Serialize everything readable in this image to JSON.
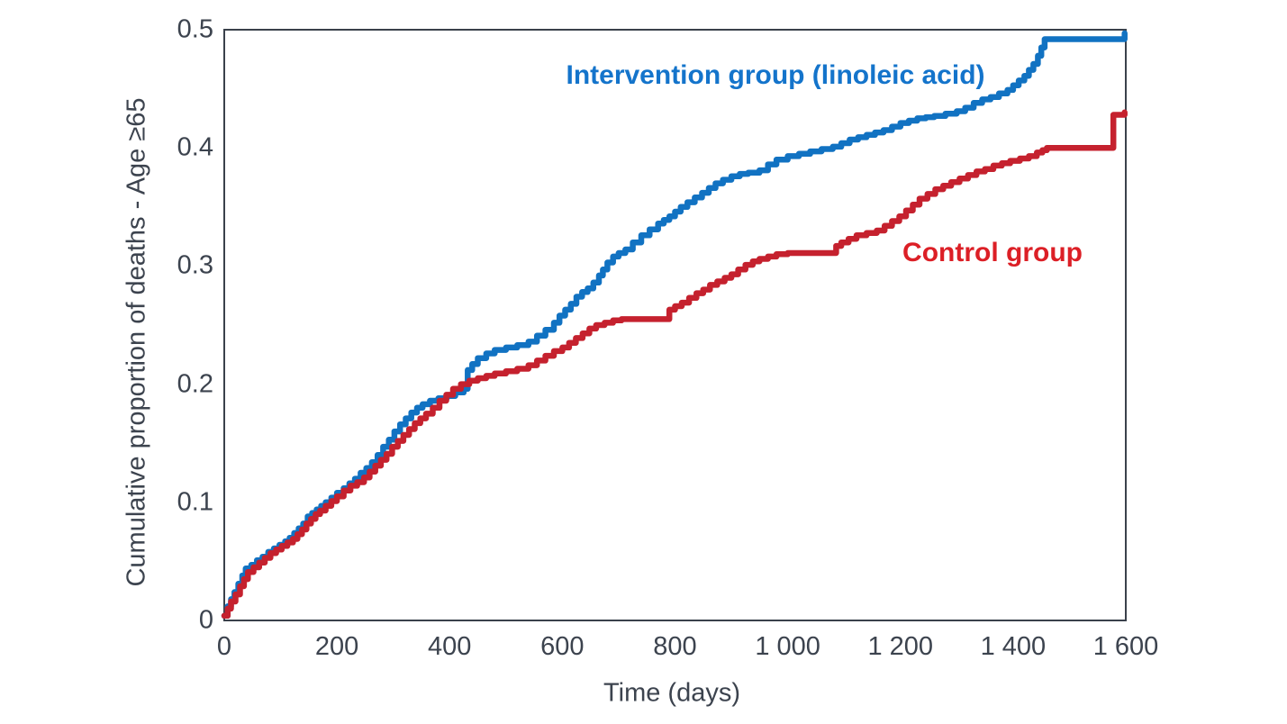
{
  "figure": {
    "background": "#ffffff",
    "frame_color": "#3a414b",
    "text_color": "#3c434e"
  },
  "chart_data": {
    "type": "line",
    "subtype": "step-after",
    "title": "",
    "xlabel": "Time (days)",
    "ylabel": "Cumulative proportion of deaths - Age ≥65",
    "xlim": [
      0,
      1600
    ],
    "ylim": [
      0,
      0.5
    ],
    "grid": false,
    "legend_position": "inline-annotations",
    "x_ticks": [
      {
        "value": 0,
        "label": "0"
      },
      {
        "value": 200,
        "label": "200"
      },
      {
        "value": 400,
        "label": "400"
      },
      {
        "value": 600,
        "label": "600"
      },
      {
        "value": 800,
        "label": "800"
      },
      {
        "value": 1000,
        "label": "1 000"
      },
      {
        "value": 1200,
        "label": "1 200"
      },
      {
        "value": 1400,
        "label": "1 400"
      },
      {
        "value": 1600,
        "label": "1 600"
      }
    ],
    "y_ticks": [
      {
        "value": 0,
        "label": "0"
      },
      {
        "value": 0.1,
        "label": "0.1"
      },
      {
        "value": 0.2,
        "label": "0.2"
      },
      {
        "value": 0.3,
        "label": "0.3"
      },
      {
        "value": 0.4,
        "label": "0.4"
      },
      {
        "value": 0.5,
        "label": "0.5"
      }
    ],
    "series": [
      {
        "name": "Intervention group (linoleic acid)",
        "line_color": "#1172c2",
        "label_color": "#1474cb",
        "label_anchor_days": 980,
        "label_anchor_prop": 0.462,
        "points": [
          [
            0,
            0.004
          ],
          [
            6,
            0.012
          ],
          [
            12,
            0.018
          ],
          [
            18,
            0.024
          ],
          [
            25,
            0.031
          ],
          [
            32,
            0.038
          ],
          [
            38,
            0.044
          ],
          [
            48,
            0.047
          ],
          [
            58,
            0.051
          ],
          [
            68,
            0.054
          ],
          [
            78,
            0.058
          ],
          [
            88,
            0.061
          ],
          [
            98,
            0.064
          ],
          [
            108,
            0.067
          ],
          [
            116,
            0.07
          ],
          [
            124,
            0.074
          ],
          [
            132,
            0.078
          ],
          [
            140,
            0.082
          ],
          [
            148,
            0.088
          ],
          [
            156,
            0.091
          ],
          [
            164,
            0.094
          ],
          [
            172,
            0.097
          ],
          [
            180,
            0.1
          ],
          [
            190,
            0.104
          ],
          [
            200,
            0.108
          ],
          [
            212,
            0.112
          ],
          [
            222,
            0.116
          ],
          [
            232,
            0.12
          ],
          [
            242,
            0.125
          ],
          [
            252,
            0.129
          ],
          [
            262,
            0.134
          ],
          [
            272,
            0.14
          ],
          [
            282,
            0.147
          ],
          [
            292,
            0.153
          ],
          [
            302,
            0.16
          ],
          [
            312,
            0.166
          ],
          [
            322,
            0.171
          ],
          [
            332,
            0.176
          ],
          [
            342,
            0.18
          ],
          [
            352,
            0.183
          ],
          [
            365,
            0.186
          ],
          [
            380,
            0.188
          ],
          [
            395,
            0.19
          ],
          [
            410,
            0.193
          ],
          [
            425,
            0.196
          ],
          [
            432,
            0.212
          ],
          [
            440,
            0.217
          ],
          [
            450,
            0.222
          ],
          [
            465,
            0.226
          ],
          [
            480,
            0.229
          ],
          [
            500,
            0.231
          ],
          [
            520,
            0.233
          ],
          [
            540,
            0.236
          ],
          [
            555,
            0.241
          ],
          [
            570,
            0.246
          ],
          [
            585,
            0.252
          ],
          [
            595,
            0.258
          ],
          [
            605,
            0.263
          ],
          [
            615,
            0.268
          ],
          [
            625,
            0.274
          ],
          [
            635,
            0.278
          ],
          [
            645,
            0.281
          ],
          [
            655,
            0.286
          ],
          [
            665,
            0.292
          ],
          [
            672,
            0.297
          ],
          [
            680,
            0.303
          ],
          [
            690,
            0.308
          ],
          [
            700,
            0.311
          ],
          [
            712,
            0.314
          ],
          [
            725,
            0.32
          ],
          [
            740,
            0.326
          ],
          [
            755,
            0.331
          ],
          [
            770,
            0.336
          ],
          [
            780,
            0.339
          ],
          [
            790,
            0.342
          ],
          [
            800,
            0.346
          ],
          [
            810,
            0.35
          ],
          [
            822,
            0.354
          ],
          [
            835,
            0.358
          ],
          [
            848,
            0.362
          ],
          [
            860,
            0.366
          ],
          [
            872,
            0.37
          ],
          [
            885,
            0.373
          ],
          [
            900,
            0.376
          ],
          [
            915,
            0.378
          ],
          [
            930,
            0.379
          ],
          [
            950,
            0.381
          ],
          [
            965,
            0.386
          ],
          [
            980,
            0.39
          ],
          [
            1000,
            0.393
          ],
          [
            1020,
            0.395
          ],
          [
            1040,
            0.397
          ],
          [
            1060,
            0.399
          ],
          [
            1080,
            0.401
          ],
          [
            1095,
            0.404
          ],
          [
            1110,
            0.407
          ],
          [
            1125,
            0.409
          ],
          [
            1140,
            0.411
          ],
          [
            1155,
            0.413
          ],
          [
            1170,
            0.415
          ],
          [
            1185,
            0.418
          ],
          [
            1200,
            0.421
          ],
          [
            1215,
            0.423
          ],
          [
            1230,
            0.425
          ],
          [
            1245,
            0.426
          ],
          [
            1260,
            0.427
          ],
          [
            1280,
            0.429
          ],
          [
            1300,
            0.431
          ],
          [
            1315,
            0.434
          ],
          [
            1330,
            0.438
          ],
          [
            1345,
            0.441
          ],
          [
            1360,
            0.443
          ],
          [
            1375,
            0.446
          ],
          [
            1390,
            0.449
          ],
          [
            1400,
            0.453
          ],
          [
            1410,
            0.457
          ],
          [
            1420,
            0.461
          ],
          [
            1428,
            0.466
          ],
          [
            1436,
            0.471
          ],
          [
            1444,
            0.478
          ],
          [
            1450,
            0.485
          ],
          [
            1456,
            0.492
          ],
          [
            1590,
            0.492
          ],
          [
            1598,
            0.497
          ]
        ]
      },
      {
        "name": "Control group",
        "line_color": "#c5212e",
        "label_color": "#dc1f26",
        "label_anchor_days": 1365,
        "label_anchor_prop": 0.312,
        "points": [
          [
            0,
            0.004
          ],
          [
            6,
            0.01
          ],
          [
            12,
            0.016
          ],
          [
            20,
            0.022
          ],
          [
            28,
            0.029
          ],
          [
            35,
            0.035
          ],
          [
            42,
            0.041
          ],
          [
            52,
            0.045
          ],
          [
            62,
            0.049
          ],
          [
            72,
            0.053
          ],
          [
            82,
            0.057
          ],
          [
            92,
            0.06
          ],
          [
            102,
            0.063
          ],
          [
            112,
            0.066
          ],
          [
            122,
            0.069
          ],
          [
            130,
            0.073
          ],
          [
            138,
            0.077
          ],
          [
            146,
            0.082
          ],
          [
            154,
            0.086
          ],
          [
            162,
            0.09
          ],
          [
            170,
            0.093
          ],
          [
            180,
            0.097
          ],
          [
            190,
            0.101
          ],
          [
            200,
            0.105
          ],
          [
            212,
            0.11
          ],
          [
            224,
            0.114
          ],
          [
            236,
            0.117
          ],
          [
            248,
            0.121
          ],
          [
            258,
            0.126
          ],
          [
            268,
            0.131
          ],
          [
            278,
            0.136
          ],
          [
            288,
            0.141
          ],
          [
            298,
            0.147
          ],
          [
            308,
            0.152
          ],
          [
            318,
            0.157
          ],
          [
            328,
            0.162
          ],
          [
            338,
            0.167
          ],
          [
            348,
            0.171
          ],
          [
            358,
            0.175
          ],
          [
            370,
            0.18
          ],
          [
            382,
            0.186
          ],
          [
            394,
            0.191
          ],
          [
            406,
            0.196
          ],
          [
            420,
            0.2
          ],
          [
            435,
            0.203
          ],
          [
            450,
            0.205
          ],
          [
            465,
            0.207
          ],
          [
            480,
            0.209
          ],
          [
            500,
            0.211
          ],
          [
            520,
            0.213
          ],
          [
            540,
            0.216
          ],
          [
            555,
            0.22
          ],
          [
            570,
            0.224
          ],
          [
            585,
            0.228
          ],
          [
            600,
            0.231
          ],
          [
            612,
            0.235
          ],
          [
            624,
            0.239
          ],
          [
            636,
            0.243
          ],
          [
            648,
            0.247
          ],
          [
            660,
            0.25
          ],
          [
            675,
            0.252
          ],
          [
            690,
            0.254
          ],
          [
            705,
            0.255
          ],
          [
            782,
            0.255
          ],
          [
            790,
            0.263
          ],
          [
            800,
            0.266
          ],
          [
            812,
            0.269
          ],
          [
            825,
            0.273
          ],
          [
            838,
            0.277
          ],
          [
            850,
            0.28
          ],
          [
            862,
            0.284
          ],
          [
            875,
            0.287
          ],
          [
            888,
            0.29
          ],
          [
            900,
            0.293
          ],
          [
            912,
            0.297
          ],
          [
            925,
            0.301
          ],
          [
            938,
            0.304
          ],
          [
            950,
            0.306
          ],
          [
            965,
            0.308
          ],
          [
            980,
            0.31
          ],
          [
            1000,
            0.311
          ],
          [
            1078,
            0.311
          ],
          [
            1086,
            0.317
          ],
          [
            1095,
            0.32
          ],
          [
            1108,
            0.323
          ],
          [
            1122,
            0.326
          ],
          [
            1140,
            0.328
          ],
          [
            1158,
            0.33
          ],
          [
            1172,
            0.334
          ],
          [
            1185,
            0.338
          ],
          [
            1198,
            0.342
          ],
          [
            1210,
            0.347
          ],
          [
            1222,
            0.352
          ],
          [
            1234,
            0.357
          ],
          [
            1248,
            0.361
          ],
          [
            1262,
            0.365
          ],
          [
            1276,
            0.368
          ],
          [
            1290,
            0.371
          ],
          [
            1305,
            0.374
          ],
          [
            1320,
            0.377
          ],
          [
            1335,
            0.38
          ],
          [
            1350,
            0.382
          ],
          [
            1365,
            0.385
          ],
          [
            1380,
            0.387
          ],
          [
            1395,
            0.389
          ],
          [
            1412,
            0.391
          ],
          [
            1428,
            0.393
          ],
          [
            1442,
            0.396
          ],
          [
            1452,
            0.398
          ],
          [
            1460,
            0.4
          ],
          [
            1572,
            0.4
          ],
          [
            1578,
            0.428
          ],
          [
            1598,
            0.43
          ]
        ]
      }
    ]
  }
}
